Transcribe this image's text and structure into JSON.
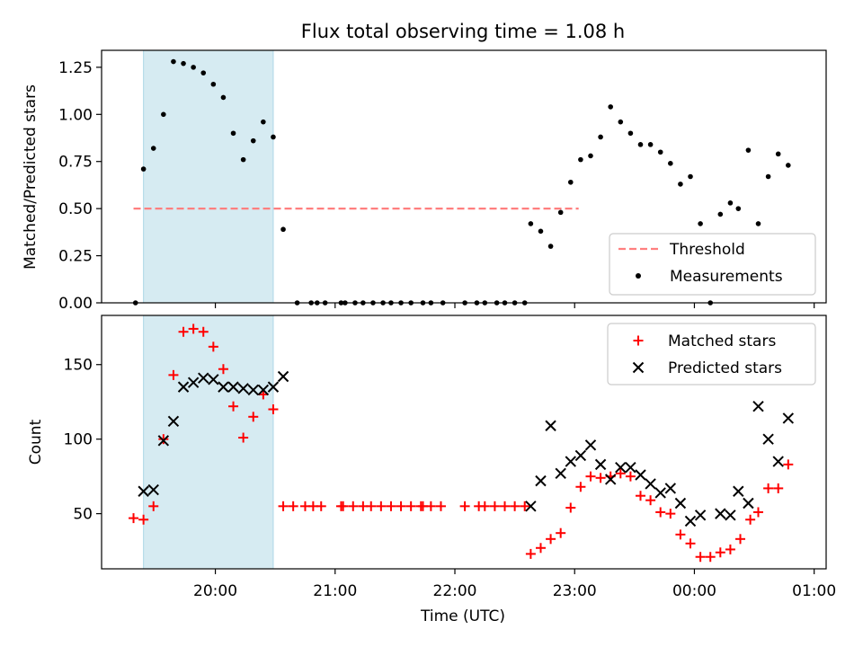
{
  "chart_data": [
    {
      "type": "scatter",
      "title": "Flux total observing time = 1.08 h",
      "ylabel": "Matched/Predicted stars",
      "xlim": [
        "19:03",
        "01:06"
      ],
      "ylim": [
        0,
        1.34
      ],
      "yticks": [
        "0.00",
        "0.25",
        "0.50",
        "0.75",
        "1.00",
        "1.25"
      ],
      "ytick_values": [
        0,
        0.25,
        0.5,
        0.75,
        1.0,
        1.25
      ],
      "legend_position": "lower right",
      "shaded_interval": [
        "19:24",
        "20:29"
      ],
      "shade_color": "#add8e6",
      "threshold": {
        "name": "Threshold",
        "value": 0.5,
        "x_range": [
          "19:19",
          "23:02"
        ],
        "color": "#ff7f7f"
      },
      "measurements": {
        "name": "Measurements",
        "color": "#000000",
        "points": [
          [
            "19:20",
            0.0
          ],
          [
            "19:24",
            0.71
          ],
          [
            "19:29",
            0.82
          ],
          [
            "19:34",
            1.0
          ],
          [
            "19:39",
            1.28
          ],
          [
            "19:44",
            1.27
          ],
          [
            "19:49",
            1.25
          ],
          [
            "19:54",
            1.22
          ],
          [
            "19:59",
            1.16
          ],
          [
            "20:04",
            1.09
          ],
          [
            "20:09",
            0.9
          ],
          [
            "20:14",
            0.76
          ],
          [
            "20:19",
            0.86
          ],
          [
            "20:24",
            0.96
          ],
          [
            "20:29",
            0.88
          ],
          [
            "20:34",
            0.39
          ],
          [
            "20:41",
            0.0
          ],
          [
            "20:48",
            0.0
          ],
          [
            "20:51",
            0.0
          ],
          [
            "20:55",
            0.0
          ],
          [
            "21:03",
            0.0
          ],
          [
            "21:05",
            0.0
          ],
          [
            "21:10",
            0.0
          ],
          [
            "21:14",
            0.0
          ],
          [
            "21:19",
            0.0
          ],
          [
            "21:24",
            0.0
          ],
          [
            "21:28",
            0.0
          ],
          [
            "21:33",
            0.0
          ],
          [
            "21:38",
            0.0
          ],
          [
            "21:44",
            0.0
          ],
          [
            "21:48",
            0.0
          ],
          [
            "21:54",
            0.0
          ],
          [
            "22:05",
            0.0
          ],
          [
            "22:11",
            0.0
          ],
          [
            "22:15",
            0.0
          ],
          [
            "22:21",
            0.0
          ],
          [
            "22:25",
            0.0
          ],
          [
            "22:30",
            0.0
          ],
          [
            "22:35",
            0.0
          ],
          [
            "22:38",
            0.42
          ],
          [
            "22:43",
            0.38
          ],
          [
            "22:48",
            0.3
          ],
          [
            "22:53",
            0.48
          ],
          [
            "22:58",
            0.64
          ],
          [
            "23:03",
            0.76
          ],
          [
            "23:08",
            0.78
          ],
          [
            "23:13",
            0.88
          ],
          [
            "23:18",
            1.04
          ],
          [
            "23:23",
            0.96
          ],
          [
            "23:28",
            0.9
          ],
          [
            "23:33",
            0.84
          ],
          [
            "23:38",
            0.84
          ],
          [
            "23:43",
            0.8
          ],
          [
            "23:48",
            0.74
          ],
          [
            "23:53",
            0.63
          ],
          [
            "23:58",
            0.67
          ],
          [
            "00:03",
            0.42
          ],
          [
            "00:08",
            0.0
          ],
          [
            "00:13",
            0.47
          ],
          [
            "00:18",
            0.53
          ],
          [
            "00:22",
            0.5
          ],
          [
            "00:27",
            0.81
          ],
          [
            "00:32",
            0.42
          ],
          [
            "00:37",
            0.67
          ],
          [
            "00:42",
            0.79
          ],
          [
            "00:47",
            0.73
          ]
        ]
      }
    },
    {
      "type": "scatter",
      "xlabel": "Time (UTC)",
      "ylabel": "Count",
      "xlim": [
        "19:03",
        "01:06"
      ],
      "ylim": [
        13,
        183
      ],
      "xticks": [
        "20:00",
        "21:00",
        "22:00",
        "23:00",
        "00:00",
        "01:00"
      ],
      "yticks": [
        "50",
        "100",
        "150"
      ],
      "ytick_values": [
        50,
        100,
        150
      ],
      "legend_position": "upper right",
      "shaded_interval": [
        "19:24",
        "20:29"
      ],
      "shade_color": "#add8e6",
      "series": [
        {
          "name": "Matched stars",
          "marker": "+",
          "color": "#ff0000",
          "points": [
            [
              "19:19",
              47
            ],
            [
              "19:24",
              46
            ],
            [
              "19:29",
              55
            ],
            [
              "19:34",
              100
            ],
            [
              "19:39",
              143
            ],
            [
              "19:44",
              172
            ],
            [
              "19:49",
              174
            ],
            [
              "19:54",
              172
            ],
            [
              "19:59",
              162
            ],
            [
              "20:04",
              147
            ],
            [
              "20:09",
              122
            ],
            [
              "20:14",
              101
            ],
            [
              "20:19",
              115
            ],
            [
              "20:24",
              130
            ],
            [
              "20:29",
              120
            ],
            [
              "20:34",
              55
            ],
            [
              "20:39",
              55
            ],
            [
              "20:45",
              55
            ],
            [
              "20:49",
              55
            ],
            [
              "20:53",
              55
            ],
            [
              "21:03",
              55
            ],
            [
              "21:04",
              55
            ],
            [
              "21:09",
              55
            ],
            [
              "21:14",
              55
            ],
            [
              "21:18",
              55
            ],
            [
              "21:23",
              55
            ],
            [
              "21:28",
              55
            ],
            [
              "21:33",
              55
            ],
            [
              "21:38",
              55
            ],
            [
              "21:43",
              55
            ],
            [
              "21:44",
              55
            ],
            [
              "21:48",
              55
            ],
            [
              "21:53",
              55
            ],
            [
              "22:05",
              55
            ],
            [
              "22:12",
              55
            ],
            [
              "22:15",
              55
            ],
            [
              "22:20",
              55
            ],
            [
              "22:25",
              55
            ],
            [
              "22:30",
              55
            ],
            [
              "22:35",
              55
            ],
            [
              "22:38",
              23
            ],
            [
              "22:43",
              27
            ],
            [
              "22:48",
              33
            ],
            [
              "22:53",
              37
            ],
            [
              "22:58",
              54
            ],
            [
              "23:03",
              68
            ],
            [
              "23:08",
              75
            ],
            [
              "23:13",
              74
            ],
            [
              "23:18",
              75
            ],
            [
              "23:23",
              77
            ],
            [
              "23:28",
              75
            ],
            [
              "23:33",
              62
            ],
            [
              "23:38",
              59
            ],
            [
              "23:43",
              51
            ],
            [
              "23:48",
              50
            ],
            [
              "23:53",
              36
            ],
            [
              "23:58",
              30
            ],
            [
              "00:03",
              21
            ],
            [
              "00:08",
              21
            ],
            [
              "00:13",
              24
            ],
            [
              "00:18",
              26
            ],
            [
              "00:23",
              33
            ],
            [
              "00:28",
              46
            ],
            [
              "00:32",
              51
            ],
            [
              "00:37",
              67
            ],
            [
              "00:42",
              67
            ],
            [
              "00:47",
              83
            ]
          ]
        },
        {
          "name": "Predicted stars",
          "marker": "x",
          "color": "#000000",
          "points": [
            [
              "19:24",
              65
            ],
            [
              "19:29",
              66
            ],
            [
              "19:34",
              99
            ],
            [
              "19:39",
              112
            ],
            [
              "19:44",
              135
            ],
            [
              "19:49",
              138
            ],
            [
              "19:54",
              141
            ],
            [
              "19:59",
              140
            ],
            [
              "20:04",
              135
            ],
            [
              "20:09",
              135
            ],
            [
              "20:14",
              134
            ],
            [
              "20:19",
              133
            ],
            [
              "20:24",
              133
            ],
            [
              "20:29",
              135
            ],
            [
              "20:34",
              142
            ],
            [
              "22:38",
              55
            ],
            [
              "22:43",
              72
            ],
            [
              "22:48",
              109
            ],
            [
              "22:53",
              77
            ],
            [
              "22:58",
              85
            ],
            [
              "23:03",
              89
            ],
            [
              "23:08",
              96
            ],
            [
              "23:13",
              83
            ],
            [
              "23:18",
              73
            ],
            [
              "23:23",
              81
            ],
            [
              "23:28",
              81
            ],
            [
              "23:33",
              76
            ],
            [
              "23:38",
              70
            ],
            [
              "23:43",
              64
            ],
            [
              "23:48",
              67
            ],
            [
              "23:53",
              57
            ],
            [
              "23:58",
              45
            ],
            [
              "00:03",
              49
            ],
            [
              "00:13",
              50
            ],
            [
              "00:18",
              49
            ],
            [
              "00:22",
              65
            ],
            [
              "00:27",
              57
            ],
            [
              "00:32",
              122
            ],
            [
              "00:37",
              100
            ],
            [
              "00:42",
              85
            ],
            [
              "00:47",
              114
            ]
          ]
        }
      ]
    }
  ]
}
